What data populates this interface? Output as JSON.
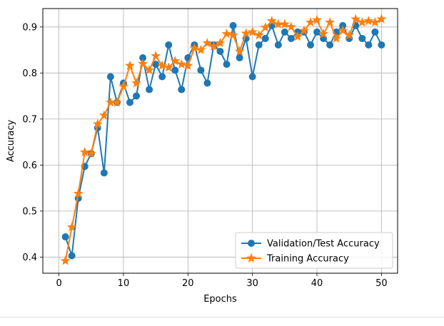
{
  "chart_data": {
    "type": "line",
    "title": "",
    "xlabel": "Epochs",
    "ylabel": "Accuracy",
    "xlim": [
      -2.5,
      52.5
    ],
    "ylim": [
      0.365,
      0.94
    ],
    "xticks": [
      0,
      10,
      20,
      30,
      40,
      50
    ],
    "yticks": [
      0.4,
      0.5,
      0.6,
      0.7,
      0.8,
      0.9
    ],
    "xtick_labels": [
      "0",
      "10",
      "20",
      "30",
      "40",
      "50"
    ],
    "ytick_labels": [
      "0.4",
      "0.5",
      "0.6",
      "0.7",
      "0.8",
      "0.9"
    ],
    "grid": true,
    "legend_position": "lower-right",
    "x": [
      1,
      2,
      3,
      4,
      5,
      6,
      7,
      8,
      9,
      10,
      11,
      12,
      13,
      14,
      15,
      16,
      17,
      18,
      19,
      20,
      21,
      22,
      23,
      24,
      25,
      26,
      27,
      28,
      29,
      30,
      31,
      32,
      33,
      34,
      35,
      36,
      37,
      38,
      39,
      40,
      41,
      42,
      43,
      44,
      45,
      46,
      47,
      48,
      49,
      50
    ],
    "series": [
      {
        "name": "Validation/Test Accuracy",
        "color": "#1f77b4",
        "marker": "circle",
        "values": [
          0.444,
          0.403,
          0.528,
          0.597,
          0.625,
          0.681,
          0.583,
          0.792,
          0.736,
          0.778,
          0.736,
          0.75,
          0.833,
          0.764,
          0.819,
          0.792,
          0.861,
          0.806,
          0.764,
          0.833,
          0.861,
          0.806,
          0.778,
          0.861,
          0.847,
          0.819,
          0.903,
          0.833,
          0.875,
          0.792,
          0.861,
          0.875,
          0.903,
          0.861,
          0.889,
          0.875,
          0.889,
          0.889,
          0.861,
          0.889,
          0.875,
          0.861,
          0.889,
          0.903,
          0.875,
          0.903,
          0.875,
          0.861,
          0.889,
          0.861
        ]
      },
      {
        "name": "Training Accuracy",
        "color": "#ff7f0e",
        "marker": "star",
        "values": [
          0.392,
          0.465,
          0.538,
          0.628,
          0.625,
          0.689,
          0.708,
          0.736,
          0.736,
          0.771,
          0.816,
          0.778,
          0.82,
          0.806,
          0.837,
          0.816,
          0.812,
          0.826,
          0.819,
          0.816,
          0.854,
          0.85,
          0.865,
          0.858,
          0.865,
          0.885,
          0.882,
          0.847,
          0.886,
          0.889,
          0.882,
          0.899,
          0.913,
          0.906,
          0.906,
          0.9,
          0.879,
          0.892,
          0.91,
          0.915,
          0.885,
          0.91,
          0.875,
          0.892,
          0.882,
          0.917,
          0.91,
          0.913,
          0.91,
          0.917
        ]
      }
    ]
  }
}
